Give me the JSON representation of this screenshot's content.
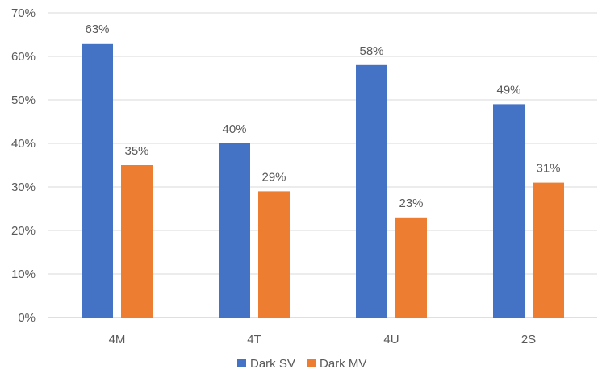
{
  "chart_data": {
    "type": "bar",
    "title": "",
    "xlabel": "",
    "ylabel": "",
    "categories": [
      "4M",
      "4T",
      "4U",
      "2S"
    ],
    "series": [
      {
        "name": "Dark SV",
        "values": [
          63,
          40,
          58,
          49
        ],
        "labels": [
          "63%",
          "40%",
          "58%",
          "49%"
        ],
        "color": "#4472C4"
      },
      {
        "name": "Dark MV",
        "values": [
          35,
          29,
          23,
          31
        ],
        "labels": [
          "35%",
          "29%",
          "23%",
          "31%"
        ],
        "color": "#ED7D31"
      }
    ],
    "ylim": [
      0,
      70
    ],
    "yticks": [
      0,
      10,
      20,
      30,
      40,
      50,
      60,
      70
    ],
    "ytick_labels": [
      "0%",
      "10%",
      "20%",
      "30%",
      "40%",
      "50%",
      "60%",
      "70%"
    ],
    "grid": true,
    "legend_position": "bottom"
  }
}
